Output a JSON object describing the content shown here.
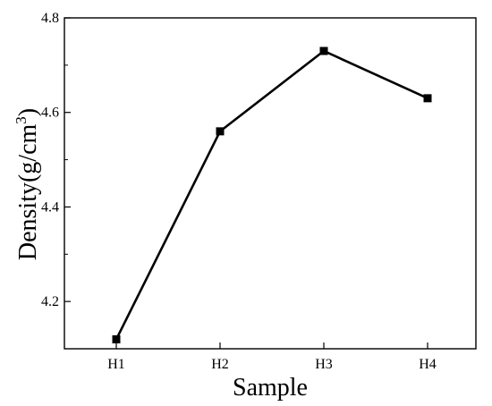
{
  "chart_data": {
    "type": "line",
    "categories": [
      "H1",
      "H2",
      "H3",
      "H4"
    ],
    "series": [
      {
        "values": [
          4.12,
          4.56,
          4.73,
          4.63
        ]
      }
    ],
    "xlabel": "Sample",
    "ylabel": {
      "base": "Density(g/cm",
      "sup": "3",
      "close": ")"
    },
    "ylim": [
      4.1,
      4.8
    ],
    "yticks": [
      4.2,
      4.4,
      4.6,
      4.8
    ],
    "yticklabels": [
      "4.2",
      "4.4",
      "4.6",
      "4.8"
    ],
    "grid": false,
    "marker": "square",
    "line_color": "#000000"
  }
}
